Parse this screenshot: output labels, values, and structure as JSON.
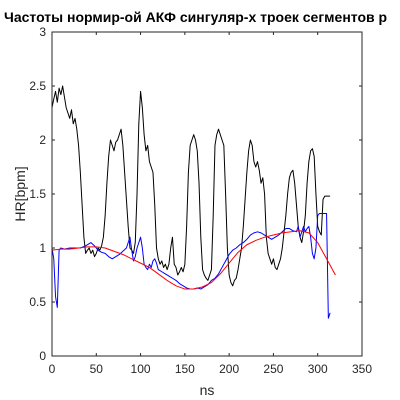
{
  "chart_data": {
    "type": "line",
    "title": "Частоты нормир-ой АКФ сингуляр-х троек сегментов р",
    "xlabel": "ns",
    "ylabel": "HR[bpm]",
    "xlim": [
      0,
      350
    ],
    "ylim": [
      0,
      3
    ],
    "xticks": [
      "0",
      "50",
      "100",
      "150",
      "200",
      "250",
      "300",
      "350"
    ],
    "yticks": [
      "0",
      "0.5",
      "1",
      "1.5",
      "2",
      "2.5",
      "3"
    ],
    "grid": false,
    "colors": {
      "black_series": "#000000",
      "blue_series": "#0000ff",
      "red_series": "#ff0000",
      "axes": "#262626"
    },
    "series": [
      {
        "color": "black",
        "x": [
          0,
          2,
          4,
          6,
          8,
          10,
          12,
          14,
          16,
          18,
          20,
          22,
          24,
          26,
          28,
          30,
          32,
          34,
          36,
          38,
          40,
          42,
          44,
          46,
          48,
          50,
          52,
          54,
          56,
          58,
          60,
          62,
          64,
          66,
          68,
          70,
          72,
          74,
          76,
          78,
          80,
          82,
          84,
          86,
          88,
          90,
          92,
          94,
          96,
          98,
          100,
          102,
          104,
          106,
          108,
          110,
          112,
          114,
          116,
          118,
          120,
          122,
          124,
          126,
          128,
          130,
          132,
          134,
          136,
          138,
          140,
          142,
          144,
          146,
          148,
          150,
          152,
          154,
          156,
          158,
          160,
          162,
          164,
          166,
          168,
          170,
          172,
          174,
          176,
          178,
          180,
          182,
          184,
          186,
          188,
          190,
          192,
          194,
          196,
          198,
          200,
          202,
          204,
          206,
          208,
          210,
          212,
          214,
          216,
          218,
          220,
          222,
          224,
          226,
          228,
          230,
          232,
          234,
          236,
          238,
          240,
          242,
          244,
          246,
          248,
          250,
          252,
          254,
          256,
          258,
          260,
          262,
          264,
          266,
          268,
          270,
          272,
          274,
          276,
          278,
          280,
          282,
          284,
          286,
          288,
          290,
          292,
          294,
          296,
          298,
          300,
          302,
          304,
          306,
          308,
          310,
          312,
          314
        ],
        "y": [
          2.3,
          2.38,
          2.45,
          2.35,
          2.48,
          2.42,
          2.5,
          2.4,
          2.3,
          2.25,
          2.2,
          2.28,
          2.15,
          2.2,
          2.1,
          1.95,
          1.7,
          1.4,
          1.1,
          0.95,
          0.98,
          1.0,
          0.95,
          0.98,
          0.92,
          0.95,
          1.0,
          0.98,
          1.02,
          1.1,
          1.3,
          1.6,
          1.85,
          2.0,
          1.95,
          1.9,
          1.98,
          2.0,
          2.05,
          2.1,
          1.95,
          1.7,
          1.45,
          1.2,
          1.0,
          0.98,
          0.95,
          1.05,
          1.5,
          2.15,
          2.45,
          2.3,
          2.05,
          1.9,
          1.95,
          1.8,
          1.75,
          1.7,
          1.4,
          1.0,
          0.9,
          0.85,
          0.88,
          0.82,
          0.85,
          0.8,
          0.85,
          1.0,
          1.1,
          0.85,
          0.82,
          0.75,
          0.78,
          0.82,
          0.78,
          0.85,
          1.2,
          1.7,
          1.95,
          2.0,
          2.05,
          2.0,
          1.9,
          1.6,
          1.1,
          0.8,
          0.75,
          0.72,
          0.7,
          0.75,
          0.8,
          1.3,
          1.95,
          2.05,
          2.1,
          2.05,
          2.0,
          1.95,
          1.5,
          1.0,
          0.75,
          0.68,
          0.65,
          0.7,
          0.72,
          0.8,
          0.9,
          1.0,
          1.2,
          1.45,
          1.7,
          1.9,
          2.0,
          1.95,
          1.8,
          1.75,
          1.8,
          1.72,
          1.6,
          1.65,
          1.5,
          1.1,
          0.95,
          0.9,
          0.85,
          0.9,
          0.82,
          0.8,
          0.85,
          0.9,
          1.0,
          1.15,
          1.3,
          1.5,
          1.65,
          1.7,
          1.72,
          1.6,
          1.4,
          1.2,
          1.1,
          1.05,
          1.15,
          1.3,
          1.6,
          1.8,
          1.9,
          1.92,
          1.85,
          1.5,
          1.2,
          1.15,
          1.12,
          1.45,
          1.48,
          1.48,
          1.48,
          1.48
        ]
      },
      {
        "color": "blue",
        "x": [
          0,
          2,
          4,
          6,
          8,
          10,
          14,
          20,
          26,
          32,
          38,
          44,
          48,
          52,
          56,
          60,
          64,
          68,
          72,
          76,
          80,
          84,
          86,
          88,
          90,
          92,
          94,
          96,
          98,
          100,
          102,
          104,
          106,
          108,
          110,
          112,
          114,
          116,
          118,
          120,
          124,
          128,
          132,
          136,
          140,
          144,
          148,
          152,
          156,
          160,
          164,
          168,
          172,
          176,
          180,
          184,
          188,
          192,
          196,
          200,
          204,
          208,
          212,
          216,
          220,
          224,
          228,
          232,
          236,
          240,
          244,
          248,
          252,
          256,
          260,
          264,
          268,
          272,
          276,
          278,
          280,
          282,
          284,
          286,
          288,
          290,
          292,
          294,
          296,
          298,
          300,
          302,
          304,
          306,
          308,
          310,
          312,
          314
        ],
        "y": [
          1.0,
          0.9,
          0.55,
          0.45,
          0.98,
          1.0,
          0.99,
          1.0,
          1.0,
          1.0,
          1.02,
          1.05,
          1.02,
          0.98,
          0.96,
          0.95,
          0.92,
          0.9,
          0.92,
          0.94,
          0.97,
          1.0,
          1.05,
          1.1,
          0.98,
          0.88,
          0.92,
          1.0,
          1.05,
          1.1,
          1.0,
          0.85,
          0.82,
          0.8,
          0.85,
          0.82,
          0.88,
          0.9,
          0.86,
          0.8,
          0.78,
          0.76,
          0.74,
          0.72,
          0.7,
          0.67,
          0.65,
          0.63,
          0.62,
          0.62,
          0.63,
          0.62,
          0.64,
          0.66,
          0.7,
          0.72,
          0.76,
          0.82,
          0.88,
          0.94,
          0.98,
          1.0,
          1.03,
          1.05,
          1.08,
          1.12,
          1.14,
          1.15,
          1.14,
          1.12,
          1.1,
          1.08,
          1.1,
          1.12,
          1.15,
          1.18,
          1.18,
          1.16,
          1.15,
          1.2,
          1.1,
          1.15,
          1.2,
          1.15,
          1.18,
          1.2,
          1.1,
          0.95,
          0.9,
          1.0,
          1.3,
          1.32,
          1.32,
          1.32,
          1.32,
          1.32,
          0.35,
          0.4
        ]
      },
      {
        "color": "red",
        "x": [
          0,
          10,
          20,
          30,
          40,
          50,
          60,
          70,
          80,
          90,
          100,
          110,
          120,
          130,
          140,
          150,
          160,
          170,
          180,
          190,
          200,
          210,
          220,
          230,
          240,
          250,
          260,
          270,
          280,
          290,
          300,
          310,
          320
        ],
        "y": [
          0.98,
          0.99,
          0.99,
          1.0,
          1.01,
          1.01,
          1.0,
          0.97,
          0.94,
          0.9,
          0.86,
          0.82,
          0.76,
          0.7,
          0.65,
          0.62,
          0.62,
          0.64,
          0.68,
          0.76,
          0.86,
          0.96,
          1.03,
          1.07,
          1.1,
          1.12,
          1.14,
          1.15,
          1.16,
          1.14,
          1.05,
          0.9,
          0.75
        ]
      }
    ]
  }
}
